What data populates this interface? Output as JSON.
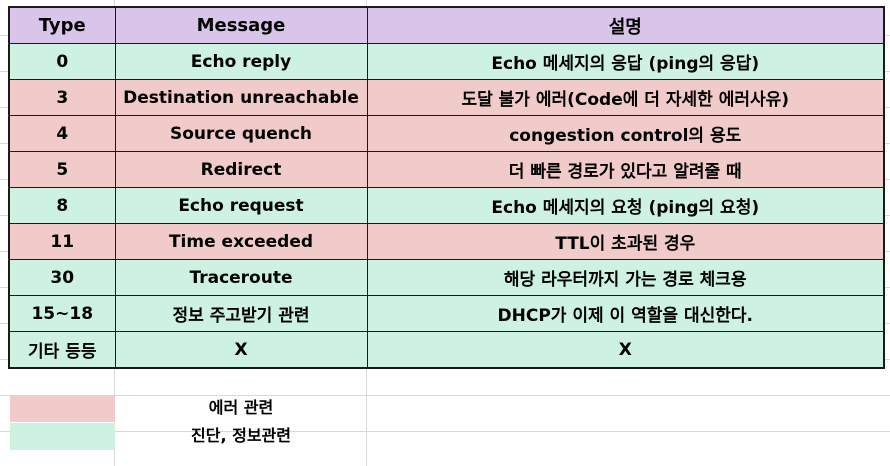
{
  "colors": {
    "header": "#d9c5ea",
    "error": "#f1caca",
    "info": "#cdf2e1"
  },
  "table": {
    "headers": {
      "type": "Type",
      "message": "Message",
      "description": "설명"
    },
    "rows": [
      {
        "type": "0",
        "message": "Echo reply",
        "description": "Echo 메세지의 응답 (ping의 응답)",
        "category": "info"
      },
      {
        "type": "3",
        "message": "Destination unreachable",
        "description": "도달 불가 에러(Code에 더 자세한 에러사유)",
        "category": "error"
      },
      {
        "type": "4",
        "message": "Source quench",
        "description": "congestion control의 용도",
        "category": "error"
      },
      {
        "type": "5",
        "message": "Redirect",
        "description": "더 빠른 경로가 있다고 알려줄 때",
        "category": "error"
      },
      {
        "type": "8",
        "message": "Echo request",
        "description": "Echo 메세지의 요청 (ping의 요청)",
        "category": "info"
      },
      {
        "type": "11",
        "message": "Time exceeded",
        "description": "TTL이 초과된 경우",
        "category": "error"
      },
      {
        "type": "30",
        "message": "Traceroute",
        "description": "해당 라우터까지 가는 경로 체크용",
        "category": "info"
      },
      {
        "type": "15~18",
        "message": "정보 주고받기 관련",
        "description": "DHCP가 이제 이 역할을 대신한다.",
        "category": "info"
      },
      {
        "type": "기타 등등",
        "message": "X",
        "description": "X",
        "category": "info"
      }
    ]
  },
  "legend": [
    {
      "label": "에러 관련",
      "category": "error"
    },
    {
      "label": "진단, 정보관련",
      "category": "info"
    }
  ]
}
